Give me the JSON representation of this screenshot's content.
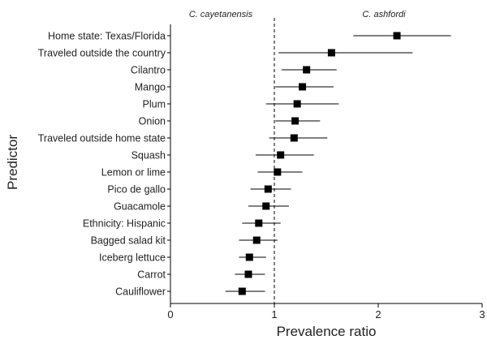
{
  "chart_data": {
    "type": "scatter",
    "subtype": "forest-plot",
    "xlabel": "Prevalence ratio",
    "ylabel": "Predictor",
    "xlim": [
      0,
      3
    ],
    "xticks": [
      0,
      1,
      2,
      3
    ],
    "reference_value": 1,
    "annotations": {
      "left": "C. cayetanensis",
      "right": "C. ashfordi"
    },
    "rows": [
      {
        "label": "Home state: Texas/Florida",
        "estimate": 2.18,
        "lower": 1.76,
        "upper": 2.7
      },
      {
        "label": "Traveled outside the country",
        "estimate": 1.55,
        "lower": 1.04,
        "upper": 2.33
      },
      {
        "label": "Cilantro",
        "estimate": 1.31,
        "lower": 1.07,
        "upper": 1.6
      },
      {
        "label": "Mango",
        "estimate": 1.27,
        "lower": 1.01,
        "upper": 1.57
      },
      {
        "label": "Plum",
        "estimate": 1.22,
        "lower": 0.92,
        "upper": 1.62
      },
      {
        "label": "Onion",
        "estimate": 1.2,
        "lower": 1.01,
        "upper": 1.44
      },
      {
        "label": "Traveled outside home state",
        "estimate": 1.19,
        "lower": 0.95,
        "upper": 1.51
      },
      {
        "label": "Squash",
        "estimate": 1.06,
        "lower": 0.82,
        "upper": 1.38
      },
      {
        "label": "Lemon or lime",
        "estimate": 1.03,
        "lower": 0.84,
        "upper": 1.27
      },
      {
        "label": "Pico de gallo",
        "estimate": 0.94,
        "lower": 0.77,
        "upper": 1.16
      },
      {
        "label": "Guacamole",
        "estimate": 0.92,
        "lower": 0.75,
        "upper": 1.14
      },
      {
        "label": "Ethnicity: Hispanic",
        "estimate": 0.85,
        "lower": 0.69,
        "upper": 1.06
      },
      {
        "label": "Bagged salad kit",
        "estimate": 0.83,
        "lower": 0.66,
        "upper": 1.03
      },
      {
        "label": "Iceberg lettuce",
        "estimate": 0.76,
        "lower": 0.66,
        "upper": 0.92
      },
      {
        "label": "Carrot",
        "estimate": 0.75,
        "lower": 0.62,
        "upper": 0.91
      },
      {
        "label": "Cauliflower",
        "estimate": 0.69,
        "lower": 0.53,
        "upper": 0.91
      }
    ]
  }
}
